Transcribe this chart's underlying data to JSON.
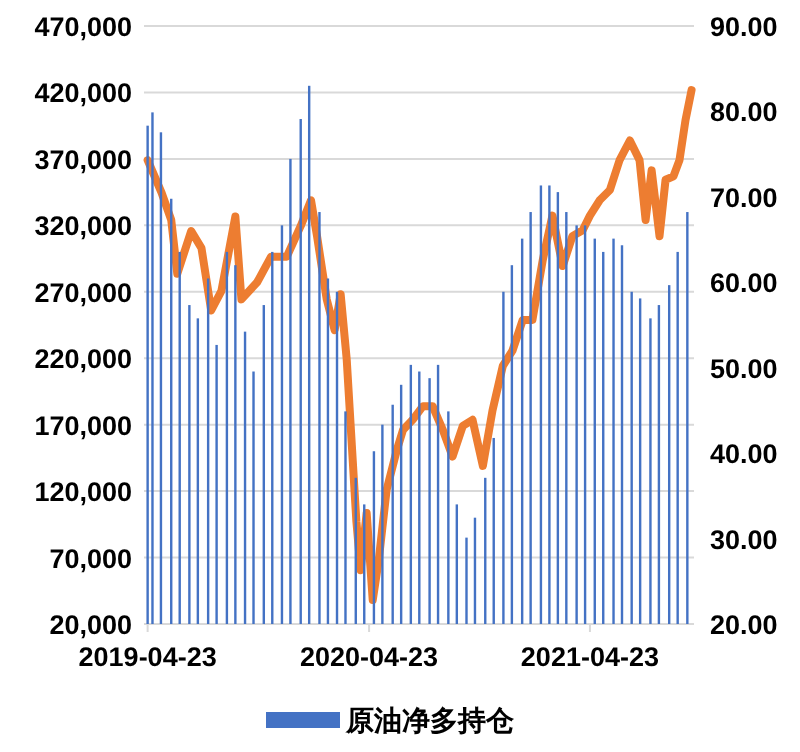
{
  "chart_data": {
    "type": "bar",
    "grid": "y",
    "legend": "bottom",
    "x": [
      "2019-04-23",
      "2019-05-01",
      "2019-05-15",
      "2019-06-01",
      "2019-06-15",
      "2019-07-01",
      "2019-07-15",
      "2019-08-01",
      "2019-08-15",
      "2019-09-01",
      "2019-09-15",
      "2019-10-01",
      "2019-10-15",
      "2019-11-01",
      "2019-11-15",
      "2019-12-01",
      "2019-12-15",
      "2020-01-01",
      "2020-01-15",
      "2020-02-01",
      "2020-02-15",
      "2020-03-01",
      "2020-03-15",
      "2020-04-01",
      "2020-04-15",
      "2020-05-01",
      "2020-05-15",
      "2020-06-01",
      "2020-06-15",
      "2020-07-01",
      "2020-07-15",
      "2020-08-01",
      "2020-08-15",
      "2020-09-01",
      "2020-09-15",
      "2020-10-01",
      "2020-10-15",
      "2020-11-01",
      "2020-11-15",
      "2020-12-01",
      "2020-12-15",
      "2021-01-01",
      "2021-01-15",
      "2021-02-01",
      "2021-02-15",
      "2021-03-01",
      "2021-03-15",
      "2021-04-01",
      "2021-04-15",
      "2021-05-01",
      "2021-05-15",
      "2021-06-01",
      "2021-06-15",
      "2021-07-01",
      "2021-07-15",
      "2021-08-01",
      "2021-08-15",
      "2021-09-01",
      "2021-09-15",
      "2021-10-01"
    ],
    "series": [
      {
        "name": "原油净多持仓",
        "color": "#4472c4",
        "values": [
          395000,
          405000,
          390000,
          340000,
          300000,
          260000,
          250000,
          280000,
          230000,
          300000,
          290000,
          240000,
          210000,
          260000,
          300000,
          320000,
          370000,
          400000,
          425000,
          330000,
          280000,
          270000,
          180000,
          130000,
          110000,
          150000,
          170000,
          185000,
          200000,
          215000,
          210000,
          205000,
          215000,
          180000,
          110000,
          85000,
          100000,
          130000,
          160000,
          270000,
          290000,
          310000,
          330000,
          350000,
          350000,
          345000,
          330000,
          320000,
          320000,
          310000,
          300000,
          310000,
          305000,
          270000,
          265000,
          250000,
          260000,
          275000,
          300000,
          330000
        ]
      },
      {
        "type": "line",
        "axis": "y2",
        "color": "#ed7d31",
        "x": [
          "2019-04-23",
          "2019-05-16",
          "2019-06-01",
          "2019-06-11",
          "2019-07-04",
          "2019-07-21",
          "2019-08-06",
          "2019-08-23",
          "2019-09-15",
          "2019-09-25",
          "2019-10-21",
          "2019-11-13",
          "2019-12-09",
          "2020-01-01",
          "2020-01-18",
          "2020-01-28",
          "2020-02-13",
          "2020-02-26",
          "2020-03-07",
          "2020-03-17",
          "2020-04-02",
          "2020-04-09",
          "2020-04-19",
          "2020-04-29",
          "2020-05-09",
          "2020-05-22",
          "2020-06-08",
          "2020-06-18",
          "2020-07-04",
          "2020-07-21",
          "2020-08-06",
          "2020-08-23",
          "2020-09-08",
          "2020-09-25",
          "2020-10-11",
          "2020-10-28",
          "2020-11-13",
          "2020-11-30",
          "2020-12-16",
          "2021-01-02",
          "2021-01-18",
          "2021-02-04",
          "2021-02-20",
          "2021-03-09",
          "2021-03-25",
          "2021-04-11",
          "2021-04-23",
          "2021-05-09",
          "2021-05-26",
          "2021-06-11",
          "2021-06-28",
          "2021-07-14",
          "2021-07-24",
          "2021-08-03",
          "2021-08-16",
          "2021-08-26",
          "2021-09-08",
          "2021-09-18",
          "2021-09-28",
          "2021-10-08"
        ],
        "values": [
          74.3,
          70.5,
          67.3,
          61,
          66,
          64,
          56.7,
          59,
          67.7,
          58,
          60,
          63,
          63,
          66.6,
          69.6,
          65.4,
          58,
          54.4,
          58.6,
          51,
          32,
          26.3,
          33,
          22.8,
          27.5,
          35.7,
          40.4,
          42.7,
          43.9,
          45.5,
          45.5,
          42.7,
          39.6,
          43.2,
          43.9,
          38.5,
          45,
          50.2,
          52,
          55.6,
          55.6,
          62.6,
          67.8,
          61.9,
          65.4,
          66.1,
          67.8,
          69.6,
          70.8,
          74.3,
          76.6,
          74.3,
          67.3,
          73.1,
          65.4,
          72,
          72.4,
          74.3,
          79,
          82.5
        ]
      }
    ],
    "xlim": [
      "2019-04-17",
      "2021-10-12"
    ],
    "xticks": [
      "2019-04-23",
      "2020-04-23",
      "2021-04-23"
    ],
    "ylim": [
      20000,
      470000
    ],
    "yticks": [
      {
        "value": 20000,
        "label": "20,000"
      },
      {
        "value": 70000,
        "label": "70,000"
      },
      {
        "value": 120000,
        "label": "120,000"
      },
      {
        "value": 170000,
        "label": "170,000"
      },
      {
        "value": 220000,
        "label": "220,000"
      },
      {
        "value": 270000,
        "label": "270,000"
      },
      {
        "value": 320000,
        "label": "320,000"
      },
      {
        "value": 370000,
        "label": "370,000"
      },
      {
        "value": 420000,
        "label": "420,000"
      },
      {
        "value": 470000,
        "label": "470,000"
      }
    ],
    "y2lim": [
      20,
      90
    ],
    "y2ticks": [
      {
        "value": 20,
        "label": "20.00"
      },
      {
        "value": 30,
        "label": "30.00"
      },
      {
        "value": 40,
        "label": "40.00"
      },
      {
        "value": 50,
        "label": "50.00"
      },
      {
        "value": 60,
        "label": "60.00"
      },
      {
        "value": 70,
        "label": "70.00"
      },
      {
        "value": 80,
        "label": "80.00"
      },
      {
        "value": 90,
        "label": "90.00"
      }
    ]
  }
}
